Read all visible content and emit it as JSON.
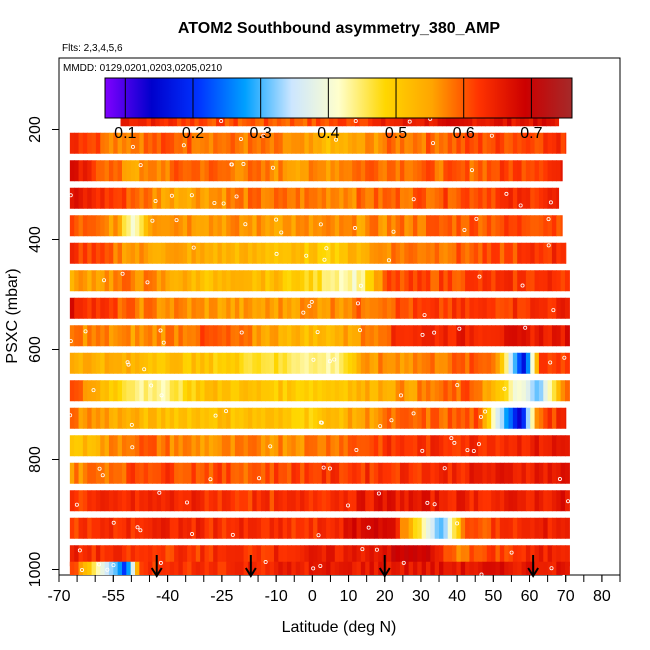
{
  "chart_data": {
    "type": "heatmap",
    "title": "ATOM2 Southbound asymmetry_380_AMP",
    "subtitle_flights": "Flts: 2,3,4,5,6",
    "subtitle_dates": "MMDD: 0129,0201,0203,0205,0210",
    "xlabel": "Latitude (deg N)",
    "ylabel": "PSXC (mbar)",
    "xlim": [
      -70,
      85
    ],
    "ylim": [
      1010,
      70
    ],
    "y_inverted": true,
    "x_tick_labels": [
      "-70",
      "-55",
      "-40",
      "-25",
      "-10",
      "0",
      "10",
      "20",
      "30",
      "40",
      "50",
      "60",
      "70",
      "80"
    ],
    "x_tick_values": [
      -70,
      -55,
      -40,
      -25,
      -10,
      0,
      10,
      20,
      30,
      40,
      50,
      60,
      70,
      80
    ],
    "y_tick_values": [
      200,
      400,
      600,
      800,
      1000
    ],
    "y_tick_labels": [
      "200",
      "400",
      "600",
      "800",
      "1000"
    ],
    "colorbar": {
      "range": [
        0.07,
        0.76
      ],
      "tick_values": [
        0.1,
        0.2,
        0.3,
        0.4,
        0.5,
        0.6,
        0.7
      ],
      "tick_labels": [
        "0.1",
        "0.2",
        "0.3",
        "0.4",
        "0.5",
        "0.6",
        "0.7"
      ],
      "colors": [
        "#8000ff",
        "#0000cc",
        "#0033ff",
        "#00a0ff",
        "#cce6ff",
        "#ffffcc",
        "#ffd700",
        "#ffa500",
        "#ff3300",
        "#cc0000",
        "#a52a2a"
      ]
    },
    "marker_latitudes": [
      -43,
      -17,
      20,
      61
    ],
    "layers": [
      {
        "p": 175,
        "lat": [
          -53,
          68
        ],
        "vals": [
          [
            -53,
            0.66
          ],
          [
            -40,
            0.63
          ],
          [
            -20,
            0.6
          ],
          [
            0,
            0.6
          ],
          [
            30,
            0.66
          ],
          [
            68,
            0.67
          ]
        ]
      },
      {
        "p": 225,
        "lat": [
          -67,
          70
        ],
        "vals": [
          [
            -67,
            0.65
          ],
          [
            -55,
            0.58
          ],
          [
            -40,
            0.6
          ],
          [
            -10,
            0.57
          ],
          [
            5,
            0.52
          ],
          [
            20,
            0.58
          ],
          [
            40,
            0.6
          ],
          [
            70,
            0.63
          ]
        ]
      },
      {
        "p": 275,
        "lat": [
          -67,
          69
        ],
        "vals": [
          [
            -67,
            0.66
          ],
          [
            -50,
            0.55
          ],
          [
            -35,
            0.6
          ],
          [
            -20,
            0.58
          ],
          [
            0,
            0.56
          ],
          [
            15,
            0.6
          ],
          [
            40,
            0.59
          ],
          [
            69,
            0.64
          ]
        ]
      },
      {
        "p": 325,
        "lat": [
          -67,
          68
        ],
        "vals": [
          [
            -67,
            0.66
          ],
          [
            -50,
            0.6
          ],
          [
            -40,
            0.55
          ],
          [
            -20,
            0.58
          ],
          [
            10,
            0.58
          ],
          [
            30,
            0.6
          ],
          [
            68,
            0.64
          ]
        ]
      },
      {
        "p": 375,
        "lat": [
          -67,
          69
        ],
        "vals": [
          [
            -67,
            0.6
          ],
          [
            -55,
            0.56
          ],
          [
            -50,
            0.4
          ],
          [
            -45,
            0.58
          ],
          [
            -20,
            0.56
          ],
          [
            10,
            0.56
          ],
          [
            40,
            0.6
          ],
          [
            69,
            0.62
          ]
        ]
      },
      {
        "p": 425,
        "lat": [
          -67,
          70
        ],
        "vals": [
          [
            -67,
            0.63
          ],
          [
            -50,
            0.56
          ],
          [
            -20,
            0.53
          ],
          [
            5,
            0.5
          ],
          [
            20,
            0.58
          ],
          [
            50,
            0.6
          ],
          [
            70,
            0.64
          ]
        ]
      },
      {
        "p": 475,
        "lat": [
          -67,
          71
        ],
        "vals": [
          [
            -67,
            0.55
          ],
          [
            -50,
            0.58
          ],
          [
            -30,
            0.52
          ],
          [
            -10,
            0.52
          ],
          [
            12,
            0.42
          ],
          [
            20,
            0.6
          ],
          [
            50,
            0.62
          ],
          [
            71,
            0.63
          ]
        ]
      },
      {
        "p": 525,
        "lat": [
          -67,
          71
        ],
        "vals": [
          [
            -67,
            0.66
          ],
          [
            -50,
            0.58
          ],
          [
            -20,
            0.55
          ],
          [
            5,
            0.57
          ],
          [
            20,
            0.6
          ],
          [
            45,
            0.62
          ],
          [
            71,
            0.64
          ]
        ]
      },
      {
        "p": 575,
        "lat": [
          -67,
          71
        ],
        "vals": [
          [
            -67,
            0.58
          ],
          [
            -50,
            0.56
          ],
          [
            -30,
            0.6
          ],
          [
            0,
            0.52
          ],
          [
            10,
            0.55
          ],
          [
            25,
            0.64
          ],
          [
            71,
            0.66
          ]
        ]
      },
      {
        "p": 625,
        "lat": [
          -67,
          71
        ],
        "vals": [
          [
            -67,
            0.55
          ],
          [
            -50,
            0.53
          ],
          [
            -25,
            0.5
          ],
          [
            5,
            0.43
          ],
          [
            15,
            0.56
          ],
          [
            50,
            0.6
          ],
          [
            58,
            0.16
          ],
          [
            62,
            0.6
          ],
          [
            71,
            0.62
          ]
        ]
      },
      {
        "p": 675,
        "lat": [
          -67,
          71
        ],
        "vals": [
          [
            -67,
            0.6
          ],
          [
            -45,
            0.42
          ],
          [
            -30,
            0.52
          ],
          [
            0,
            0.5
          ],
          [
            20,
            0.55
          ],
          [
            45,
            0.6
          ],
          [
            62,
            0.3
          ],
          [
            71,
            0.65
          ]
        ]
      },
      {
        "p": 725,
        "lat": [
          -67,
          70
        ],
        "vals": [
          [
            -67,
            0.58
          ],
          [
            -45,
            0.52
          ],
          [
            -20,
            0.52
          ],
          [
            0,
            0.5
          ],
          [
            20,
            0.58
          ],
          [
            45,
            0.6
          ],
          [
            57,
            0.14
          ],
          [
            62,
            0.6
          ],
          [
            70,
            0.64
          ]
        ]
      },
      {
        "p": 775,
        "lat": [
          -67,
          71
        ],
        "vals": [
          [
            -67,
            0.5
          ],
          [
            -50,
            0.6
          ],
          [
            -30,
            0.56
          ],
          [
            0,
            0.58
          ],
          [
            20,
            0.62
          ],
          [
            50,
            0.64
          ],
          [
            71,
            0.66
          ]
        ]
      },
      {
        "p": 825,
        "lat": [
          -67,
          71
        ],
        "vals": [
          [
            -67,
            0.57
          ],
          [
            -45,
            0.62
          ],
          [
            -20,
            0.6
          ],
          [
            0,
            0.62
          ],
          [
            25,
            0.63
          ],
          [
            50,
            0.65
          ],
          [
            71,
            0.66
          ]
        ]
      },
      {
        "p": 875,
        "lat": [
          -67,
          71
        ],
        "vals": [
          [
            -67,
            0.62
          ],
          [
            -40,
            0.64
          ],
          [
            -10,
            0.62
          ],
          [
            20,
            0.66
          ],
          [
            50,
            0.64
          ],
          [
            71,
            0.66
          ]
        ]
      },
      {
        "p": 925,
        "lat": [
          -67,
          71
        ],
        "vals": [
          [
            -67,
            0.62
          ],
          [
            -40,
            0.64
          ],
          [
            0,
            0.62
          ],
          [
            20,
            0.7
          ],
          [
            35,
            0.3
          ],
          [
            42,
            0.6
          ],
          [
            71,
            0.66
          ]
        ]
      },
      {
        "p": 975,
        "lat": [
          -67,
          71
        ],
        "vals": [
          [
            -67,
            0.64
          ],
          [
            -50,
            0.62
          ],
          [
            -20,
            0.63
          ],
          [
            10,
            0.65
          ],
          [
            30,
            0.7
          ],
          [
            38,
            0.58
          ],
          [
            71,
            0.66
          ]
        ]
      },
      {
        "p": 1005,
        "lat": [
          -67,
          71
        ],
        "vals": [
          [
            -67,
            0.63
          ],
          [
            -52,
            0.2
          ],
          [
            -48,
            0.62
          ],
          [
            -20,
            0.64
          ],
          [
            20,
            0.66
          ],
          [
            71,
            0.66
          ]
        ]
      }
    ]
  }
}
